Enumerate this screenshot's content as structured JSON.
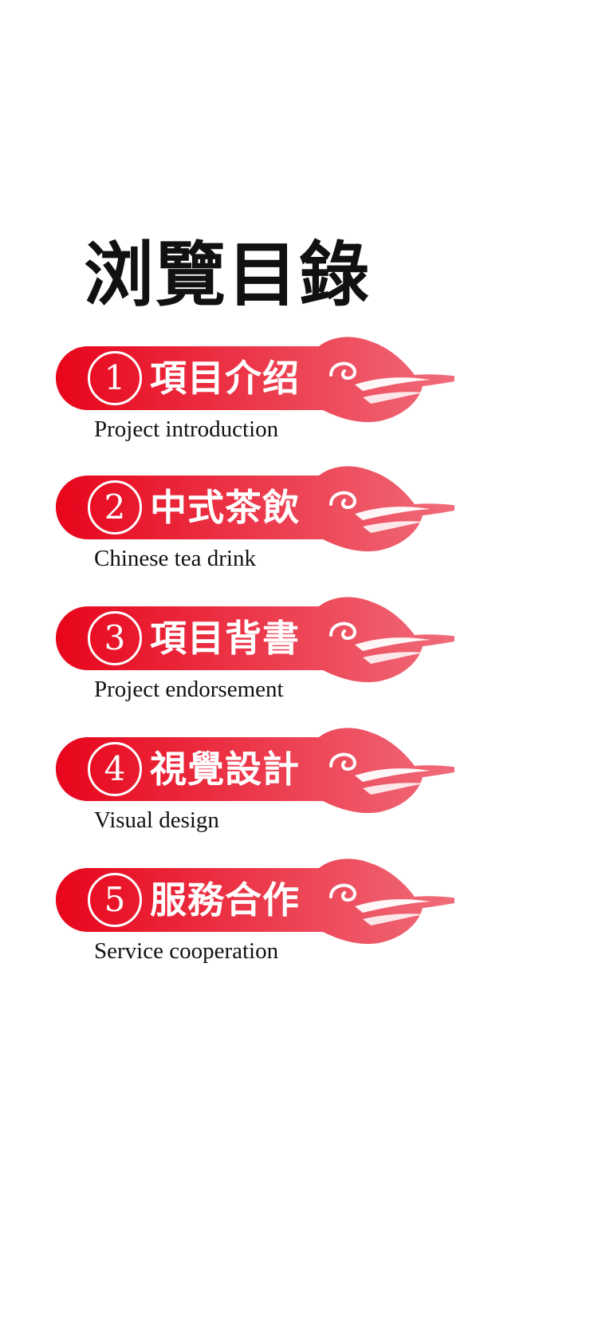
{
  "page": {
    "title": "浏覽目錄"
  },
  "colors": {
    "banner_start": "#e8051b",
    "banner_end": "#f0707e",
    "text": "#111111",
    "banner_text": "#ffffff"
  },
  "menu": {
    "items": [
      {
        "number": "1",
        "label": "項目介绍",
        "subtitle": "Project introduction",
        "icon": "cloud-icon"
      },
      {
        "number": "2",
        "label": "中式茶飲",
        "subtitle": "Chinese tea drink",
        "icon": "cloud-icon"
      },
      {
        "number": "3",
        "label": "項目背書",
        "subtitle": "Project endorsement",
        "icon": "cloud-icon"
      },
      {
        "number": "4",
        "label": "視覺設計",
        "subtitle": "Visual design",
        "icon": "cloud-icon"
      },
      {
        "number": "5",
        "label": "服務合作",
        "subtitle": "Service cooperation",
        "icon": "cloud-icon"
      }
    ]
  }
}
